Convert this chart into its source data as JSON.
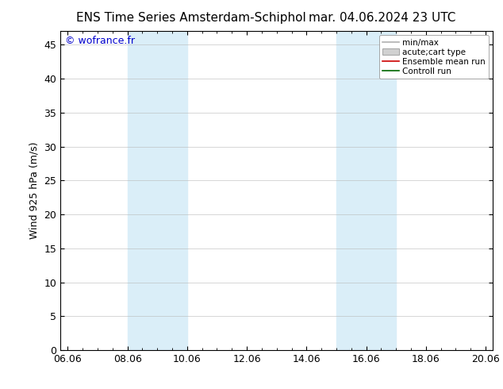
{
  "title_left": "ENS Time Series Amsterdam-Schiphol",
  "title_right": "mar. 04.06.2024 23 UTC",
  "ylabel": "Wind 925 hPa (m/s)",
  "watermark": "© wofrance.fr",
  "x_tick_labels": [
    "06.06",
    "08.06",
    "10.06",
    "12.06",
    "14.06",
    "16.06",
    "18.06",
    "20.06"
  ],
  "x_tick_positions": [
    0,
    2,
    4,
    6,
    8,
    10,
    12,
    14
  ],
  "xlim": [
    -0.25,
    14.25
  ],
  "ylim": [
    0,
    47
  ],
  "yticks": [
    0,
    5,
    10,
    15,
    20,
    25,
    30,
    35,
    40,
    45
  ],
  "background_color": "#ffffff",
  "plot_bg_color": "#ffffff",
  "shaded_bands": [
    {
      "x_start": 2.0,
      "x_end": 4.0,
      "color": "#daeef8"
    },
    {
      "x_start": 9.0,
      "x_end": 11.0,
      "color": "#daeef8"
    }
  ],
  "legend_entries": [
    {
      "label": "min/max",
      "color": "#b0b0b0",
      "type": "line"
    },
    {
      "label": "acute;cart type",
      "color": "#d0d0d0",
      "type": "band"
    },
    {
      "label": "Ensemble mean run",
      "color": "#cc0000",
      "type": "line"
    },
    {
      "label": "Controll run",
      "color": "#006600",
      "type": "line"
    }
  ],
  "grid_color": "#bbbbbb",
  "grid_alpha": 0.7,
  "title_fontsize": 11,
  "tick_label_fontsize": 9,
  "ylabel_fontsize": 9,
  "watermark_color": "#0000cc",
  "watermark_fontsize": 9
}
